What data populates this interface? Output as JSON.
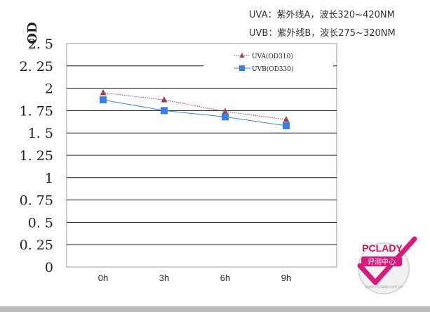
{
  "notes": {
    "line1": "UVA：紫外线A，波长320~420NM",
    "line2": "UVB：紫外线B，波长275~320NM"
  },
  "chart_data": {
    "type": "line",
    "ylabel": "OD",
    "categories": [
      "0h",
      "3h",
      "6h",
      "9h"
    ],
    "ylim": [
      0,
      2.5
    ],
    "yticks": [
      0,
      0.25,
      0.5,
      0.75,
      1,
      1.25,
      1.5,
      1.75,
      2,
      2.25,
      2.5
    ],
    "ytick_labels": [
      "0",
      "0. 25",
      "0. 5",
      "0. 75",
      "1",
      "1. 25",
      "1. 5",
      "1. 75",
      "2",
      "2. 25",
      "2. 5"
    ],
    "grid": true,
    "legend_position": "top-right",
    "series": [
      {
        "name": "UVA(OD310)",
        "values": [
          1.95,
          1.87,
          1.74,
          1.65
        ],
        "color": "#a0405a",
        "marker": "triangle",
        "line_style": "dotted"
      },
      {
        "name": "UVB(OD330)",
        "values": [
          1.87,
          1.75,
          1.68,
          1.58
        ],
        "color": "#3a7ee8",
        "marker": "square",
        "line_style": "solid"
      }
    ]
  },
  "watermark": {
    "brand": "PCLADY",
    "caption": "评测中心",
    "url": "www.PClady.com.cn",
    "accent": "#d81b7a"
  }
}
